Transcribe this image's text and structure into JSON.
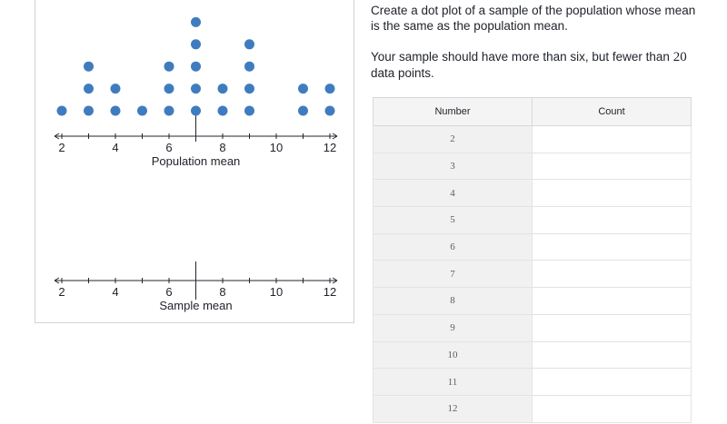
{
  "prompt": {
    "line1": "Create a dot plot of a sample of the population whose mean is the same as the population mean.",
    "line2_pre": "Your sample should have more than six, but fewer than",
    "line2_num": "20",
    "line2_post": "data points."
  },
  "population_plot": {
    "axis_label": "Population mean",
    "ticks": [
      "2",
      "4",
      "6",
      "8",
      "10",
      "12"
    ],
    "mean_marker": 7
  },
  "sample_plot": {
    "axis_label": "Sample mean",
    "ticks": [
      "2",
      "4",
      "6",
      "8",
      "10",
      "12"
    ],
    "mean_marker": 7
  },
  "chart_data": {
    "type": "scatter",
    "subtype": "dot-plot",
    "xlim": [
      2,
      12
    ],
    "x_ticks": [
      2,
      4,
      6,
      8,
      10,
      12
    ],
    "xlabel": "Population mean",
    "population_counts": [
      {
        "x": 2,
        "count": 1
      },
      {
        "x": 3,
        "count": 3
      },
      {
        "x": 4,
        "count": 2
      },
      {
        "x": 5,
        "count": 1
      },
      {
        "x": 6,
        "count": 3
      },
      {
        "x": 7,
        "count": 5
      },
      {
        "x": 8,
        "count": 2
      },
      {
        "x": 9,
        "count": 4
      },
      {
        "x": 10,
        "count": 0
      },
      {
        "x": 11,
        "count": 2
      },
      {
        "x": 12,
        "count": 2
      }
    ],
    "population_mean": 7,
    "sample_mean": 7,
    "dot_color": "#3f7cbf"
  },
  "table": {
    "headers": [
      "Number",
      "Count"
    ],
    "rows": [
      {
        "number": "2",
        "count": ""
      },
      {
        "number": "3",
        "count": ""
      },
      {
        "number": "4",
        "count": ""
      },
      {
        "number": "5",
        "count": ""
      },
      {
        "number": "6",
        "count": ""
      },
      {
        "number": "7",
        "count": ""
      },
      {
        "number": "8",
        "count": ""
      },
      {
        "number": "9",
        "count": ""
      },
      {
        "number": "10",
        "count": ""
      },
      {
        "number": "11",
        "count": ""
      },
      {
        "number": "12",
        "count": ""
      }
    ]
  }
}
